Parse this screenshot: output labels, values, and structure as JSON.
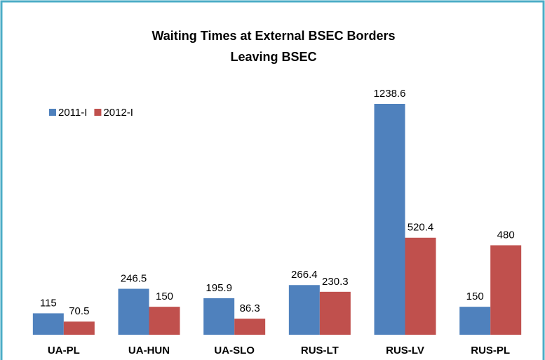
{
  "chart_data": {
    "type": "bar",
    "title": [
      "Waiting Times at External BSEC Borders",
      "Leaving BSEC"
    ],
    "categories": [
      "UA-PL",
      "UA-HUN",
      "UA-SLO",
      "RUS-LT",
      "RUS-LV",
      "RUS-PL"
    ],
    "series": [
      {
        "name": "2011-I",
        "color": "#4f81bd",
        "values": [
          115,
          246.5,
          195.9,
          266.4,
          1238.6,
          150
        ]
      },
      {
        "name": "2012-I",
        "color": "#c0504d",
        "values": [
          70.5,
          150,
          86.3,
          230.3,
          520.4,
          480
        ]
      }
    ],
    "legend": "upper left"
  }
}
